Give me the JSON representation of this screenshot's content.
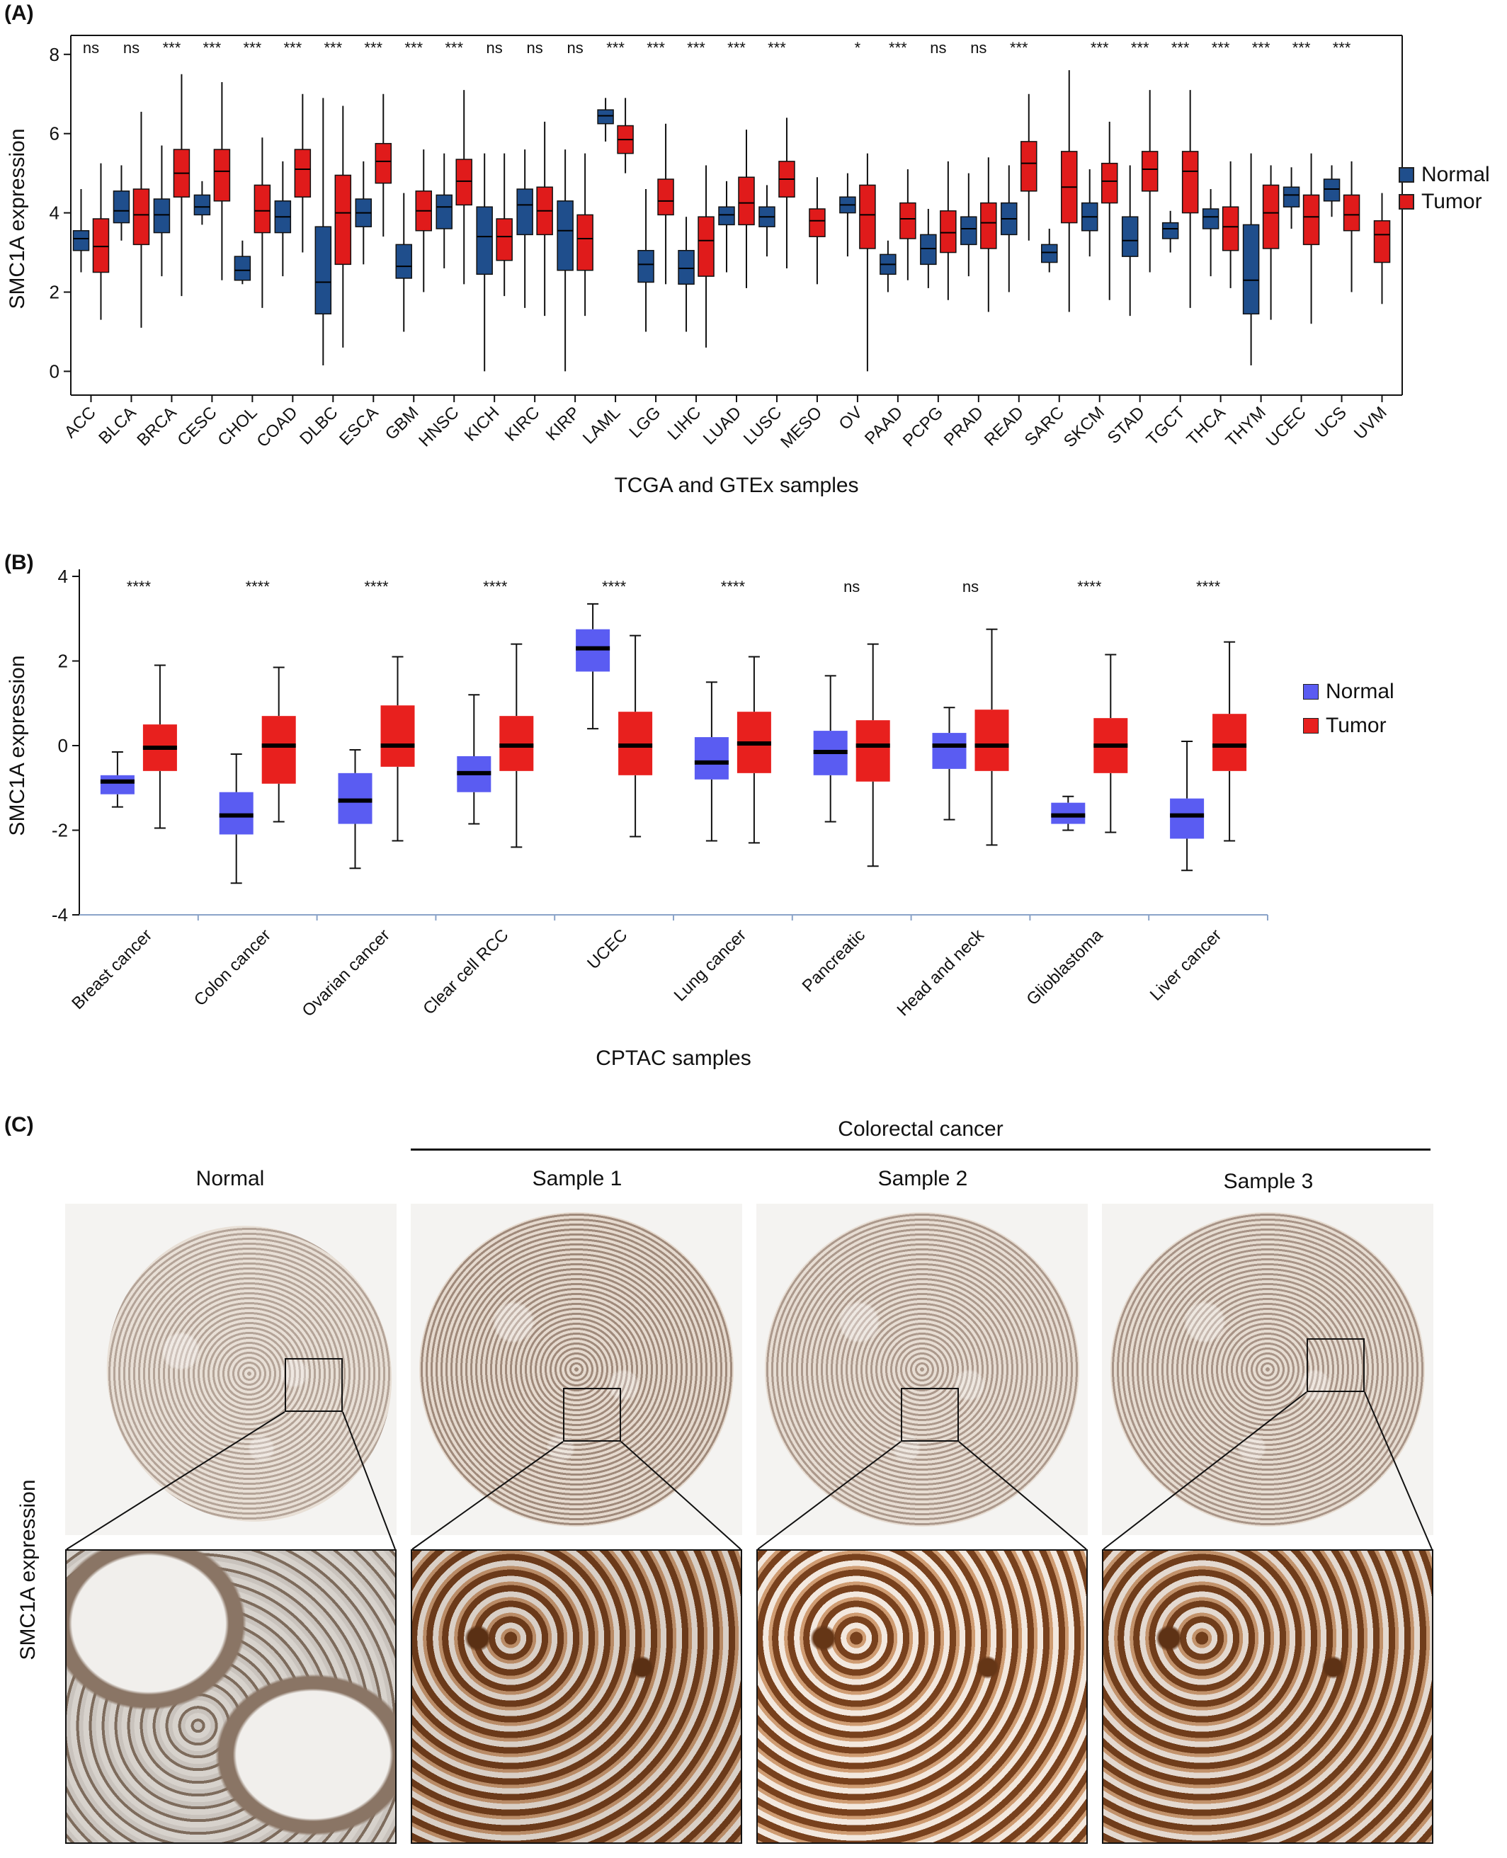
{
  "panels": {
    "a": "(A)",
    "b": "(B)",
    "c": "(C)"
  },
  "legend": {
    "a": {
      "normal": "Normal",
      "tumor": "Tumor",
      "normal_color": "#1f4e8c",
      "tumor_color": "#e01b1b"
    },
    "b": {
      "normal": "Normal",
      "tumor": "Tumor",
      "normal_color": "#5a5cf2",
      "tumor_color": "#e8201e"
    }
  },
  "chart_data": [
    {
      "type": "box",
      "xlabel": "TCGA and GTEx samples",
      "ylabel": "SMC1A expression",
      "ylim": [
        -0.6,
        8.3
      ],
      "yticks": [
        0,
        2,
        4,
        6,
        8
      ],
      "series_names": [
        "Normal",
        "Tumor"
      ],
      "categories": [
        {
          "name": "ACC",
          "sig": "ns",
          "normal": [
            2.5,
            3.05,
            3.35,
            3.55,
            4.6
          ],
          "tumor": [
            1.3,
            2.5,
            3.15,
            3.85,
            5.25
          ]
        },
        {
          "name": "BLCA",
          "sig": "ns",
          "normal": [
            3.3,
            3.75,
            4.05,
            4.55,
            5.2
          ],
          "tumor": [
            1.1,
            3.2,
            3.95,
            4.6,
            6.55
          ]
        },
        {
          "name": "BRCA",
          "sig": "***",
          "normal": [
            2.4,
            3.5,
            3.95,
            4.35,
            5.7
          ],
          "tumor": [
            1.9,
            4.4,
            5.0,
            5.6,
            7.5
          ]
        },
        {
          "name": "CESC",
          "sig": "***",
          "normal": [
            3.7,
            3.95,
            4.15,
            4.45,
            4.8
          ],
          "tumor": [
            2.3,
            4.3,
            5.05,
            5.6,
            7.3
          ]
        },
        {
          "name": "CHOL",
          "sig": "***",
          "normal": [
            2.2,
            2.3,
            2.55,
            2.9,
            3.3
          ],
          "tumor": [
            1.6,
            3.5,
            4.05,
            4.7,
            5.9
          ]
        },
        {
          "name": "COAD",
          "sig": "***",
          "normal": [
            2.4,
            3.5,
            3.9,
            4.3,
            5.3
          ],
          "tumor": [
            3.0,
            4.4,
            5.1,
            5.6,
            7.0
          ]
        },
        {
          "name": "DLBC",
          "sig": "***",
          "normal": [
            0.15,
            1.45,
            2.25,
            3.65,
            6.9
          ],
          "tumor": [
            0.6,
            2.7,
            4.0,
            4.95,
            6.7
          ]
        },
        {
          "name": "ESCA",
          "sig": "***",
          "normal": [
            2.7,
            3.65,
            4.0,
            4.35,
            5.3
          ],
          "tumor": [
            3.4,
            4.75,
            5.3,
            5.75,
            7.0
          ]
        },
        {
          "name": "GBM",
          "sig": "***",
          "normal": [
            1.0,
            2.35,
            2.65,
            3.2,
            4.5
          ],
          "tumor": [
            2.0,
            3.55,
            4.05,
            4.55,
            5.6
          ]
        },
        {
          "name": "HNSC",
          "sig": "***",
          "normal": [
            2.6,
            3.6,
            4.15,
            4.45,
            5.5
          ],
          "tumor": [
            2.2,
            4.2,
            4.8,
            5.35,
            7.1
          ]
        },
        {
          "name": "KICH",
          "sig": "ns",
          "normal": [
            0.0,
            2.45,
            3.4,
            4.15,
            5.5
          ],
          "tumor": [
            1.9,
            2.8,
            3.4,
            3.85,
            5.5
          ]
        },
        {
          "name": "KIRC",
          "sig": "ns",
          "normal": [
            1.6,
            3.45,
            4.2,
            4.6,
            5.6
          ],
          "tumor": [
            1.4,
            3.45,
            4.05,
            4.65,
            6.3
          ]
        },
        {
          "name": "KIRP",
          "sig": "ns",
          "normal": [
            0.0,
            2.55,
            3.55,
            4.3,
            5.6
          ],
          "tumor": [
            1.4,
            2.55,
            3.35,
            3.95,
            5.5
          ]
        },
        {
          "name": "LAML",
          "sig": "***",
          "normal": [
            5.8,
            6.25,
            6.45,
            6.6,
            6.9
          ],
          "tumor": [
            5.0,
            5.5,
            5.85,
            6.2,
            6.9
          ]
        },
        {
          "name": "LGG",
          "sig": "***",
          "normal": [
            1.0,
            2.25,
            2.7,
            3.05,
            4.6
          ],
          "tumor": [
            2.2,
            3.95,
            4.3,
            4.85,
            6.25
          ]
        },
        {
          "name": "LIHC",
          "sig": "***",
          "normal": [
            1.0,
            2.2,
            2.6,
            3.05,
            3.9
          ],
          "tumor": [
            0.6,
            2.4,
            3.3,
            3.9,
            5.2
          ]
        },
        {
          "name": "LUAD",
          "sig": "***",
          "normal": [
            2.5,
            3.7,
            3.95,
            4.15,
            4.8
          ],
          "tumor": [
            2.1,
            3.7,
            4.25,
            4.9,
            6.1
          ]
        },
        {
          "name": "LUSC",
          "sig": "***",
          "normal": [
            2.9,
            3.65,
            3.9,
            4.15,
            4.7
          ],
          "tumor": [
            2.6,
            4.4,
            4.85,
            5.3,
            6.4
          ]
        },
        {
          "name": "MESO",
          "sig": "",
          "normal": null,
          "tumor": [
            2.2,
            3.4,
            3.8,
            4.1,
            4.9
          ]
        },
        {
          "name": "OV",
          "sig": "*",
          "normal": [
            2.9,
            4.0,
            4.2,
            4.4,
            5.0
          ],
          "tumor": [
            0.0,
            3.1,
            3.95,
            4.7,
            5.5
          ]
        },
        {
          "name": "PAAD",
          "sig": "***",
          "normal": [
            2.0,
            2.45,
            2.7,
            2.95,
            3.3
          ],
          "tumor": [
            2.3,
            3.35,
            3.85,
            4.25,
            5.1
          ]
        },
        {
          "name": "PCPG",
          "sig": "ns",
          "normal": [
            2.1,
            2.7,
            3.1,
            3.45,
            4.1
          ],
          "tumor": [
            1.8,
            3.0,
            3.5,
            4.05,
            5.3
          ]
        },
        {
          "name": "PRAD",
          "sig": "ns",
          "normal": [
            2.4,
            3.2,
            3.6,
            3.9,
            5.0
          ],
          "tumor": [
            1.5,
            3.1,
            3.75,
            4.25,
            5.4
          ]
        },
        {
          "name": "READ",
          "sig": "***",
          "normal": [
            2.0,
            3.45,
            3.85,
            4.25,
            5.2
          ],
          "tumor": [
            3.3,
            4.55,
            5.25,
            5.8,
            7.0
          ]
        },
        {
          "name": "SARC",
          "sig": "",
          "normal": [
            2.5,
            2.75,
            3.0,
            3.2,
            3.6
          ],
          "tumor": [
            1.5,
            3.75,
            4.65,
            5.55,
            7.6
          ]
        },
        {
          "name": "SKCM",
          "sig": "***",
          "normal": [
            2.9,
            3.55,
            3.9,
            4.25,
            5.1
          ],
          "tumor": [
            1.8,
            4.25,
            4.8,
            5.25,
            6.3
          ]
        },
        {
          "name": "STAD",
          "sig": "***",
          "normal": [
            1.4,
            2.9,
            3.3,
            3.9,
            5.2
          ],
          "tumor": [
            2.5,
            4.55,
            5.1,
            5.55,
            7.1
          ]
        },
        {
          "name": "TGCT",
          "sig": "***",
          "normal": [
            3.0,
            3.35,
            3.6,
            3.75,
            4.05
          ],
          "tumor": [
            1.6,
            4.0,
            5.05,
            5.55,
            7.1
          ]
        },
        {
          "name": "THCA",
          "sig": "***",
          "normal": [
            2.4,
            3.6,
            3.9,
            4.1,
            4.6
          ],
          "tumor": [
            2.1,
            3.05,
            3.65,
            4.15,
            5.3
          ]
        },
        {
          "name": "THYM",
          "sig": "***",
          "normal": [
            0.15,
            1.45,
            2.3,
            3.7,
            5.5
          ],
          "tumor": [
            1.3,
            3.1,
            4.0,
            4.7,
            5.2
          ]
        },
        {
          "name": "UCEC",
          "sig": "***",
          "normal": [
            3.6,
            4.15,
            4.45,
            4.65,
            5.15
          ],
          "tumor": [
            1.2,
            3.2,
            3.9,
            4.45,
            5.5
          ]
        },
        {
          "name": "UCS",
          "sig": "***",
          "normal": [
            3.9,
            4.3,
            4.6,
            4.85,
            5.2
          ],
          "tumor": [
            2.0,
            3.55,
            3.95,
            4.45,
            5.3
          ]
        },
        {
          "name": "UVM",
          "sig": "",
          "normal": null,
          "tumor": [
            1.7,
            2.75,
            3.45,
            3.8,
            4.5
          ]
        }
      ]
    },
    {
      "type": "box",
      "xlabel": "CPTAC samples",
      "ylabel": "SMC1A expression",
      "ylim": [
        -4,
        4
      ],
      "yticks": [
        -4,
        -2,
        0,
        2,
        4
      ],
      "series_names": [
        "Normal",
        "Tumor"
      ],
      "categories": [
        {
          "name": "Breast cancer",
          "sig": "****",
          "normal": [
            -1.45,
            -1.15,
            -0.85,
            -0.7,
            -0.15
          ],
          "tumor": [
            -1.95,
            -0.6,
            -0.05,
            0.5,
            1.9
          ]
        },
        {
          "name": "Colon cancer",
          "sig": "****",
          "normal": [
            -3.25,
            -2.1,
            -1.65,
            -1.1,
            -0.2
          ],
          "tumor": [
            -1.8,
            -0.9,
            0.0,
            0.7,
            1.85
          ]
        },
        {
          "name": "Ovarian cancer",
          "sig": "****",
          "normal": [
            -2.9,
            -1.85,
            -1.3,
            -0.65,
            -0.1
          ],
          "tumor": [
            -2.25,
            -0.5,
            0.0,
            0.95,
            2.1
          ]
        },
        {
          "name": "Clear cell RCC",
          "sig": "****",
          "normal": [
            -1.85,
            -1.1,
            -0.65,
            -0.25,
            1.2
          ],
          "tumor": [
            -2.4,
            -0.6,
            0.0,
            0.7,
            2.4
          ]
        },
        {
          "name": "UCEC",
          "sig": "****",
          "normal": [
            0.4,
            1.75,
            2.3,
            2.75,
            3.35
          ],
          "tumor": [
            -2.15,
            -0.7,
            0.0,
            0.8,
            2.6
          ]
        },
        {
          "name": "Lung cancer",
          "sig": "****",
          "normal": [
            -2.25,
            -0.8,
            -0.4,
            0.2,
            1.5
          ],
          "tumor": [
            -2.3,
            -0.65,
            0.05,
            0.8,
            2.1
          ]
        },
        {
          "name": "Pancreatic",
          "sig": "ns",
          "normal": [
            -1.8,
            -0.7,
            -0.15,
            0.35,
            1.65
          ],
          "tumor": [
            -2.85,
            -0.85,
            0.0,
            0.6,
            2.4
          ]
        },
        {
          "name": "Head and neck",
          "sig": "ns",
          "normal": [
            -1.75,
            -0.55,
            0.0,
            0.3,
            0.9
          ],
          "tumor": [
            -2.35,
            -0.6,
            0.0,
            0.85,
            2.75
          ]
        },
        {
          "name": "Glioblastoma",
          "sig": "****",
          "normal": [
            -2.0,
            -1.85,
            -1.65,
            -1.35,
            -1.2
          ],
          "tumor": [
            -2.05,
            -0.65,
            0.0,
            0.65,
            2.15
          ]
        },
        {
          "name": "Liver cancer",
          "sig": "****",
          "normal": [
            -2.95,
            -2.2,
            -1.65,
            -1.25,
            0.1
          ],
          "tumor": [
            -2.25,
            -0.6,
            0.0,
            0.75,
            2.45
          ]
        }
      ]
    }
  ],
  "ihc": {
    "group_label": "Colorectal cancer",
    "ylabel": "SMC1A expression",
    "columns": [
      {
        "title": "Normal"
      },
      {
        "title": "Sample 1"
      },
      {
        "title": "Sample 2"
      },
      {
        "title": "Sample 3"
      }
    ]
  }
}
